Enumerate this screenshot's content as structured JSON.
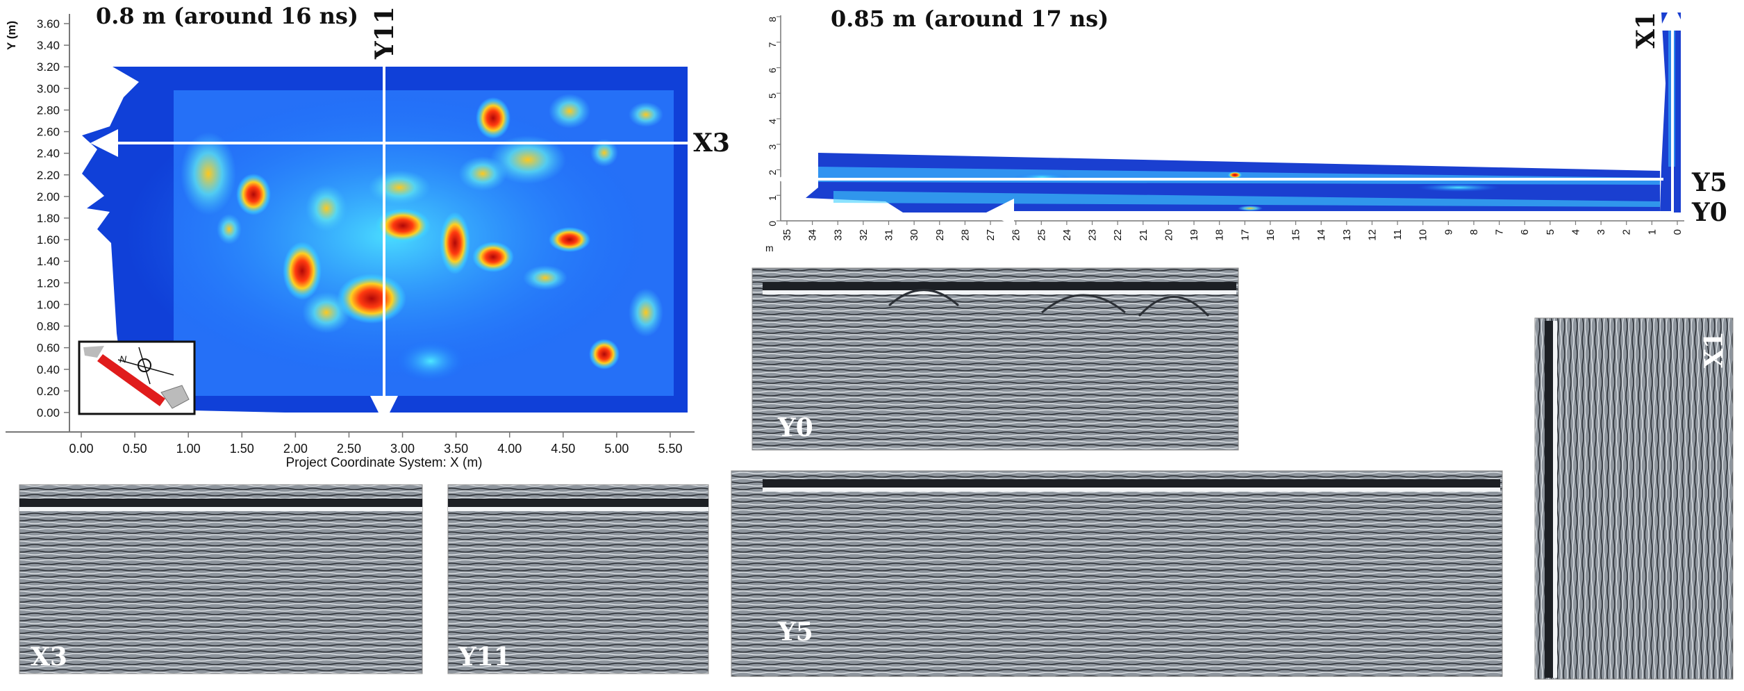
{
  "map_left": {
    "title": "0.8 m (around 16 ns)",
    "y_axis_label": "Y (m)",
    "x_axis_label": "Project Coordinate System: X (m)",
    "y_ticks": [
      "3.60",
      "3.40",
      "3.20",
      "3.00",
      "2.80",
      "2.60",
      "2.40",
      "2.20",
      "2.00",
      "1.80",
      "1.60",
      "1.40",
      "1.20",
      "1.00",
      "0.80",
      "0.60",
      "0.40",
      "0.20",
      "0.00"
    ],
    "x_ticks": [
      "0.00",
      "0.50",
      "1.00",
      "1.50",
      "2.00",
      "2.50",
      "3.00",
      "3.50",
      "4.00",
      "4.50",
      "5.00",
      "5.50"
    ],
    "profile_labels": {
      "x3": "X3",
      "y11": "Y11"
    },
    "inset_north": "N"
  },
  "map_right": {
    "title": "0.85 m (around 17 ns)",
    "y_ticks": [
      "8",
      "7",
      "6",
      "5",
      "4",
      "3",
      "2",
      "1",
      "0"
    ],
    "x_ticks": [
      "35",
      "34",
      "33",
      "32",
      "31",
      "30",
      "29",
      "28",
      "27",
      "26",
      "25",
      "24",
      "23",
      "22",
      "21",
      "20",
      "19",
      "18",
      "17",
      "16",
      "15",
      "14",
      "13",
      "12",
      "11",
      "10",
      "9",
      "8",
      "7",
      "6",
      "5",
      "4",
      "3",
      "2",
      "1",
      "0"
    ],
    "x_unit": "m",
    "profile_labels": {
      "x1": "X1",
      "y5": "Y5",
      "y0": "Y0"
    }
  },
  "radargrams": [
    {
      "label": "X3"
    },
    {
      "label": "Y11"
    },
    {
      "label": "Y0"
    },
    {
      "label": "Y5"
    },
    {
      "label": "X1"
    }
  ],
  "colors": {
    "arrow": "#ffffff",
    "map_low": "#0a1a9e",
    "map_high": "#d21a0a",
    "radar_bg": "#8f969e"
  }
}
